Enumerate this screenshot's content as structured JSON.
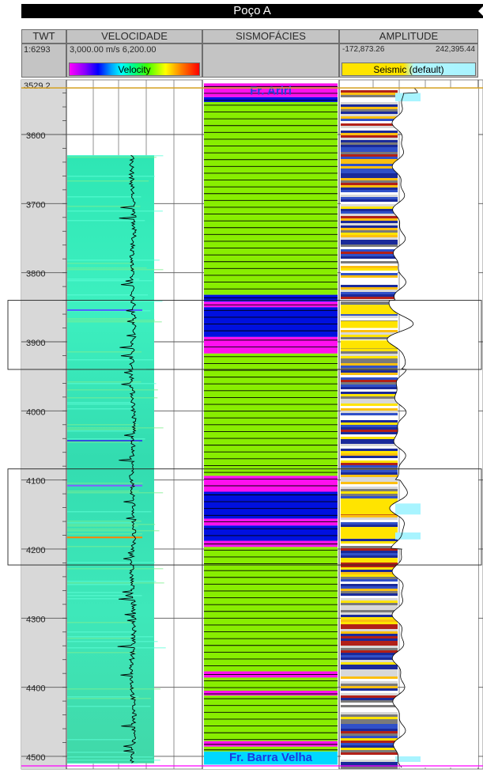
{
  "window": {
    "title": "Poço A"
  },
  "tracks": {
    "twt": {
      "header": "TWT",
      "scale": "1:6293"
    },
    "velocity": {
      "header": "VELOCIDADE",
      "range_min": "3,000.00",
      "unit": "m/s",
      "range_max": "6,200.00",
      "legend": "Velocity"
    },
    "facies": {
      "header": "SISMOFÁCIES"
    },
    "amplitude": {
      "header": "AMPLITUDE",
      "range_min": "-172,873.26",
      "range_max": "242,395.44",
      "legend": "Seismic (default)"
    }
  },
  "depth": {
    "top_label": "3529.2",
    "tick_labels": [
      "3600",
      "3700",
      "3800",
      "3900",
      "4000",
      "4100",
      "4200",
      "4300",
      "4400",
      "4500"
    ]
  },
  "formations": {
    "top": {
      "name": "Fr. Ariri",
      "depth": 3529.2
    },
    "bottom": {
      "name": "Fr. Barra Velha",
      "depth": 4510
    }
  },
  "colors": {
    "header_bg": "#c4c4c4",
    "velocity_fill": "#33e0b0",
    "facies_green": "#88ee00",
    "facies_magenta": "#ff10ee",
    "facies_blue": "#0010e0",
    "formation_line": "#d4a020",
    "seismic_yellow": "#ffe400",
    "seismic_cyan": "#a8f4ff"
  },
  "facies_intervals": [
    {
      "from": 3526,
      "to": 3546,
      "facies": "magenta"
    },
    {
      "from": 3546,
      "to": 3553,
      "facies": "blue"
    },
    {
      "from": 3553,
      "to": 3832,
      "facies": "green"
    },
    {
      "from": 3832,
      "to": 3842,
      "facies": "blue"
    },
    {
      "from": 3842,
      "to": 3850,
      "facies": "magenta"
    },
    {
      "from": 3850,
      "to": 3893,
      "facies": "blue"
    },
    {
      "from": 3893,
      "to": 3917,
      "facies": "magenta"
    },
    {
      "from": 3917,
      "to": 4094,
      "facies": "green"
    },
    {
      "from": 4094,
      "to": 4117,
      "facies": "magenta"
    },
    {
      "from": 4117,
      "to": 4156,
      "facies": "blue"
    },
    {
      "from": 4156,
      "to": 4166,
      "facies": "magenta"
    },
    {
      "from": 4166,
      "to": 4188,
      "facies": "blue"
    },
    {
      "from": 4188,
      "to": 4197,
      "facies": "magenta"
    },
    {
      "from": 4197,
      "to": 4377,
      "facies": "green"
    },
    {
      "from": 4377,
      "to": 4386,
      "facies": "magenta"
    },
    {
      "from": 4386,
      "to": 4405,
      "facies": "green"
    },
    {
      "from": 4405,
      "to": 4412,
      "facies": "magenta"
    },
    {
      "from": 4412,
      "to": 4478,
      "facies": "green"
    },
    {
      "from": 4478,
      "to": 4486,
      "facies": "magenta"
    },
    {
      "from": 4486,
      "to": 4493,
      "facies": "green"
    }
  ],
  "highlight_intervals": [
    {
      "from": 3840,
      "to": 3940
    },
    {
      "from": 4084,
      "to": 4223
    }
  ]
}
